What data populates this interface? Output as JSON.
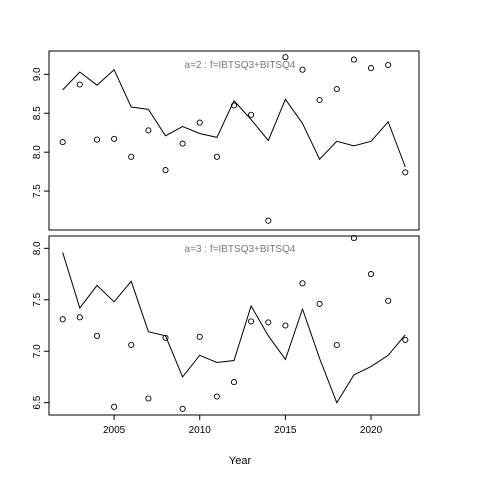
{
  "chart_data": [
    {
      "type": "line",
      "title": "a=2 : f=IBTSQ3+BITSQ4",
      "xlabel": "",
      "ylabel": "",
      "xlim": [
        2002,
        2022
      ],
      "ylim": [
        7.0,
        9.3
      ],
      "yticks": [
        "7.5",
        "8.0",
        "8.5",
        "9.0"
      ],
      "xticks": [],
      "series": [
        {
          "style": "line",
          "x": [
            2002,
            2003,
            2004,
            2005,
            2006,
            2007,
            2008,
            2009,
            2010,
            2011,
            2012,
            2013,
            2014,
            2015,
            2016,
            2017,
            2018,
            2019,
            2020,
            2021,
            2022
          ],
          "values": [
            8.8,
            9.03,
            8.86,
            9.06,
            8.58,
            8.55,
            8.21,
            8.33,
            8.24,
            8.19,
            8.66,
            8.42,
            8.15,
            8.68,
            8.37,
            7.91,
            8.14,
            8.08,
            8.14,
            8.39,
            7.81
          ]
        },
        {
          "style": "points",
          "x": [
            2002,
            2003,
            2004,
            2005,
            2006,
            2007,
            2008,
            2009,
            2010,
            2011,
            2012,
            2013,
            2014,
            2015,
            2016,
            2017,
            2018,
            2019,
            2020,
            2021,
            2022
          ],
          "values": [
            8.13,
            8.87,
            8.16,
            8.17,
            7.94,
            8.28,
            7.77,
            8.11,
            8.38,
            7.94,
            8.6,
            8.48,
            7.12,
            9.22,
            9.06,
            8.67,
            8.81,
            9.19,
            9.08,
            9.12,
            7.74
          ]
        }
      ]
    },
    {
      "type": "line",
      "title": "a=3 : f=IBTSQ3+BITSQ4",
      "xlabel": "Year",
      "ylabel": "",
      "xlim": [
        2002,
        2022
      ],
      "ylim": [
        6.38,
        8.12
      ],
      "yticks": [
        "6.5",
        "7.0",
        "7.5",
        "8.0"
      ],
      "xticks": [
        "2005",
        "2010",
        "2015",
        "2020"
      ],
      "series": [
        {
          "style": "line",
          "x": [
            2002,
            2003,
            2004,
            2005,
            2006,
            2007,
            2008,
            2009,
            2010,
            2011,
            2012,
            2013,
            2014,
            2015,
            2016,
            2017,
            2018,
            2019,
            2020,
            2021,
            2022
          ],
          "values": [
            7.96,
            7.42,
            7.64,
            7.48,
            7.68,
            7.19,
            7.15,
            6.75,
            6.96,
            6.89,
            6.91,
            7.44,
            7.15,
            6.92,
            7.41,
            6.93,
            6.5,
            6.77,
            6.85,
            6.96,
            7.16
          ]
        },
        {
          "style": "points",
          "x": [
            2002,
            2003,
            2004,
            2005,
            2006,
            2007,
            2008,
            2009,
            2010,
            2011,
            2012,
            2013,
            2014,
            2015,
            2016,
            2017,
            2018,
            2019,
            2020,
            2021,
            2022
          ],
          "values": [
            7.31,
            7.33,
            7.15,
            6.46,
            7.06,
            6.54,
            7.13,
            6.44,
            7.14,
            6.56,
            6.7,
            7.29,
            7.28,
            7.25,
            7.66,
            7.46,
            7.06,
            8.1,
            7.75,
            7.49,
            7.11
          ]
        }
      ]
    }
  ]
}
